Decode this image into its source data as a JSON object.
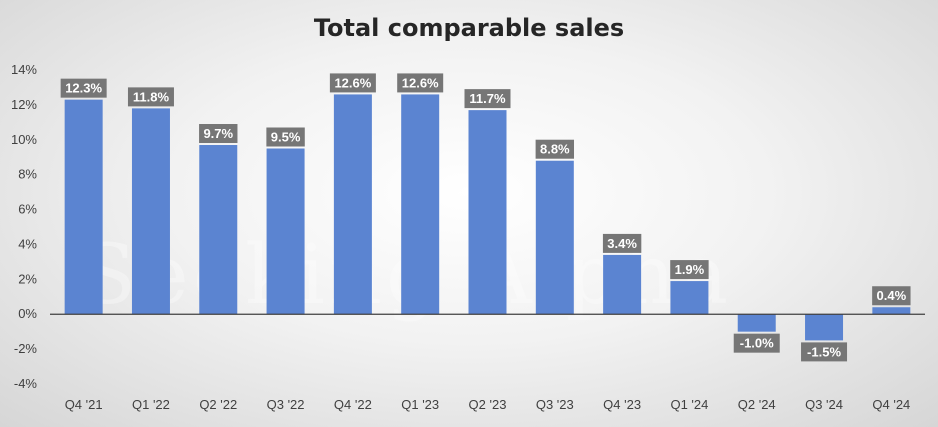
{
  "chart_data": {
    "type": "bar",
    "title": "Total comparable sales",
    "categories": [
      "Q4 '21",
      "Q1 '22",
      "Q2 '22",
      "Q3 '22",
      "Q4 '22",
      "Q1 '23",
      "Q2 '23",
      "Q3 '23",
      "Q4 '23",
      "Q1 '24",
      "Q2 '24",
      "Q3 '24",
      "Q4 '24"
    ],
    "series": [
      {
        "values": [
          12.3,
          11.8,
          9.7,
          9.5,
          12.6,
          12.6,
          11.7,
          8.8,
          3.4,
          1.9,
          -1.0,
          -1.5,
          0.4
        ],
        "data_labels": [
          "12.3%",
          "11.8%",
          "9.7%",
          "9.5%",
          "12.6%",
          "12.6%",
          "11.7%",
          "8.8%",
          "3.4%",
          "1.9%",
          "-1.0%",
          "-1.5%",
          "0.4%"
        ]
      }
    ],
    "y_ticks": [
      "-4%",
      "-2%",
      "0%",
      "2%",
      "4%",
      "6%",
      "8%",
      "10%",
      "12%",
      "14%"
    ],
    "ylim": [
      -4,
      14
    ],
    "xlabel": "",
    "ylabel": "",
    "grid": false,
    "legend": "none",
    "colors": {
      "bar": "#5b84d1",
      "label_bg": "#767676",
      "axis": "#404040"
    }
  },
  "watermark": "Seeking Alpha"
}
